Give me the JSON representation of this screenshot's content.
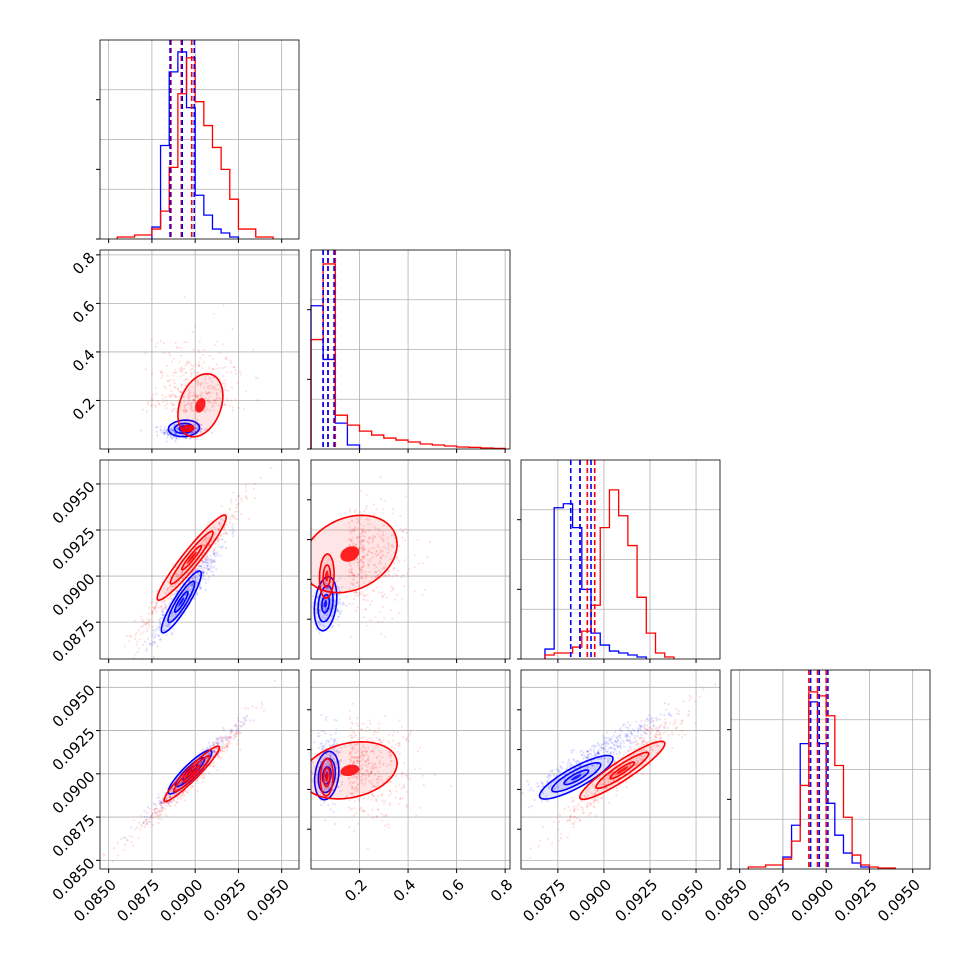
{
  "chart_data": {
    "type": "corner",
    "title": "",
    "parameters": [
      {
        "range": [
          0.0845,
          0.096
        ],
        "ticks": [
          0.085,
          0.0875,
          0.09,
          0.0925,
          0.095
        ],
        "tick_labels": [
          "0.0850",
          "0.0875",
          "0.0900",
          "0.0925",
          "0.0950"
        ]
      },
      {
        "range": [
          0.0,
          0.82
        ],
        "ticks": [
          0.2,
          0.4,
          0.6,
          0.8
        ],
        "tick_labels": [
          "0.2",
          "0.4",
          "0.6",
          "0.8"
        ]
      },
      {
        "range": [
          0.0855,
          0.0963
        ],
        "ticks": [
          0.0875,
          0.09,
          0.0925,
          0.095
        ],
        "tick_labels": [
          "0.0875",
          "0.0900",
          "0.0925",
          "0.0950"
        ]
      },
      {
        "range": [
          0.0845,
          0.096
        ],
        "ticks": [
          0.085,
          0.0875,
          0.09,
          0.0925,
          0.095
        ],
        "tick_labels": [
          "0.0850",
          "0.0875",
          "0.0900",
          "0.0925",
          "0.0950"
        ]
      }
    ],
    "grid": true,
    "legend": "none",
    "series": [
      {
        "color": "#0000ff",
        "quantiles": [
          [
            0.08855,
            0.08925,
            0.08995
          ],
          [
            0.05,
            0.07,
            0.095
          ],
          [
            0.0882,
            0.0887,
            0.0893
          ],
          [
            0.0891,
            0.0896,
            0.0901
          ]
        ],
        "histograms": [
          {
            "edges": [
              0.0875,
              0.088,
              0.0885,
              0.089,
              0.0895,
              0.09,
              0.0905,
              0.091,
              0.0915,
              0.092,
              0.0925
            ],
            "counts": [
              0.06,
              0.47,
              0.84,
              0.94,
              0.66,
              0.22,
              0.12,
              0.05,
              0.03,
              0.01
            ]
          },
          {
            "edges": [
              0.0,
              0.05,
              0.1,
              0.15,
              0.2
            ],
            "counts": [
              0.72,
              0.45,
              0.13,
              0.02
            ]
          },
          {
            "edges": [
              0.0868,
              0.0873,
              0.0878,
              0.0883,
              0.0888,
              0.0893,
              0.0898,
              0.0903,
              0.0908,
              0.0913,
              0.0918,
              0.0923
            ],
            "counts": [
              0.05,
              0.76,
              0.78,
              0.66,
              0.35,
              0.13,
              0.07,
              0.04,
              0.03,
              0.02,
              0.01
            ]
          },
          {
            "edges": [
              0.0875,
              0.088,
              0.0885,
              0.089,
              0.0895,
              0.09,
              0.0905,
              0.091,
              0.0915,
              0.092,
              0.0925
            ],
            "counts": [
              0.06,
              0.22,
              0.63,
              0.84,
              0.63,
              0.33,
              0.17,
              0.08,
              0.03,
              0.01
            ]
          }
        ]
      },
      {
        "color": "#ff0000",
        "quantiles": [
          [
            0.0886,
            0.0892,
            0.0898
          ],
          [
            0.05,
            0.07,
            0.1
          ],
          [
            0.0887,
            0.0891,
            0.0895
          ],
          [
            0.089,
            0.0895,
            0.09
          ]
        ],
        "histograms": [
          {
            "edges": [
              0.0855,
              0.0865,
              0.0875,
              0.088,
              0.0885,
              0.089,
              0.0895,
              0.09,
              0.0905,
              0.091,
              0.0915,
              0.092,
              0.0925,
              0.0935,
              0.0945
            ],
            "counts": [
              0.01,
              0.02,
              0.05,
              0.14,
              0.36,
              0.73,
              0.91,
              0.69,
              0.57,
              0.46,
              0.35,
              0.2,
              0.05,
              0.01
            ]
          },
          {
            "edges": [
              0.0,
              0.05,
              0.1,
              0.15,
              0.2,
              0.25,
              0.3,
              0.35,
              0.4,
              0.45,
              0.5,
              0.55,
              0.6,
              0.65,
              0.7,
              0.75,
              0.8
            ],
            "counts": [
              0.55,
              0.93,
              0.17,
              0.12,
              0.09,
              0.07,
              0.055,
              0.045,
              0.035,
              0.025,
              0.02,
              0.015,
              0.01,
              0.008,
              0.005,
              0.003
            ]
          },
          {
            "edges": [
              0.0868,
              0.0873,
              0.0878,
              0.0883,
              0.0888,
              0.0893,
              0.0898,
              0.0903,
              0.0908,
              0.0913,
              0.0918,
              0.0923,
              0.0928,
              0.0933,
              0.0938
            ],
            "counts": [
              0.02,
              0.03,
              0.03,
              0.06,
              0.14,
              0.27,
              0.66,
              0.85,
              0.72,
              0.57,
              0.31,
              0.13,
              0.03,
              0.01
            ]
          },
          {
            "edges": [
              0.0855,
              0.0865,
              0.0875,
              0.088,
              0.0885,
              0.089,
              0.0895,
              0.09,
              0.0905,
              0.091,
              0.0915,
              0.092,
              0.0925,
              0.093,
              0.094
            ],
            "counts": [
              0.01,
              0.02,
              0.05,
              0.14,
              0.42,
              0.89,
              0.87,
              0.77,
              0.52,
              0.26,
              0.07,
              0.02,
              0.01,
              0.005
            ]
          }
        ]
      }
    ],
    "scatter_2d": [
      {
        "row": 1,
        "col": 0,
        "series": [
          {
            "color": "#0000ff",
            "mean": [
              0.0893,
              0.075
            ],
            "sd": [
              0.0006,
              0.018
            ],
            "rho": 0.1,
            "count": 320,
            "skew": 0.0
          },
          {
            "color": "#ff0000",
            "mean": [
              0.09,
              0.2
            ],
            "sd": [
              0.0012,
              0.16
            ],
            "rho": -0.3,
            "count": 380,
            "skew": 1.4
          }
        ]
      },
      {
        "row": 2,
        "col": 0,
        "series": [
          {
            "color": "#0000ff",
            "mean": [
              0.0895,
              0.089
            ],
            "sd": [
              0.0012,
              0.0016
            ],
            "rho": 0.96,
            "count": 420
          },
          {
            "color": "#ff0000",
            "mean": [
              0.0898,
              0.0906
            ],
            "sd": [
              0.0016,
              0.0019
            ],
            "rho": 0.97,
            "count": 460
          }
        ]
      },
      {
        "row": 2,
        "col": 1,
        "series": [
          {
            "color": "#0000ff",
            "mean": [
              0.07,
              0.0886
            ],
            "sd": [
              0.03,
              0.0006
            ],
            "rho": 0.2,
            "count": 250,
            "skew": 0.0
          },
          {
            "color": "#ff0000",
            "mean": [
              0.2,
              0.091
            ],
            "sd": [
              0.15,
              0.0015
            ],
            "rho": -0.2,
            "count": 420,
            "skew": 1.3
          }
        ]
      },
      {
        "row": 3,
        "col": 0,
        "series": [
          {
            "color": "#0000ff",
            "mean": [
              0.0899,
              0.0902
            ],
            "sd": [
              0.0013,
              0.0013
            ],
            "rho": 0.98,
            "count": 420
          },
          {
            "color": "#ff0000",
            "mean": [
              0.0898,
              0.0898
            ],
            "sd": [
              0.0017,
              0.0017
            ],
            "rho": 0.98,
            "count": 460
          }
        ]
      },
      {
        "row": 3,
        "col": 1,
        "series": [
          {
            "color": "#0000ff",
            "mean": [
              0.07,
              0.0905
            ],
            "sd": [
              0.03,
              0.001
            ],
            "rho": 0.1,
            "count": 250,
            "skew": 0.0
          },
          {
            "color": "#ff0000",
            "mean": [
              0.2,
              0.0903
            ],
            "sd": [
              0.15,
              0.0014
            ],
            "rho": -0.2,
            "count": 420,
            "skew": 1.3
          }
        ]
      },
      {
        "row": 3,
        "col": 2,
        "series": [
          {
            "color": "#0000ff",
            "mean": [
              0.0895,
              0.091
            ],
            "sd": [
              0.002,
              0.0013
            ],
            "rho": 0.95,
            "count": 420
          },
          {
            "color": "#ff0000",
            "mean": [
              0.091,
              0.0903
            ],
            "sd": [
              0.0017,
              0.0017
            ],
            "rho": 0.96,
            "count": 460
          }
        ]
      }
    ],
    "contours_2d": [
      {
        "row": 1,
        "col": 0,
        "series": [
          {
            "color": "#0000ff",
            "center": [
              0.08935,
              0.085
            ],
            "sd": [
              0.00045,
              0.017
            ],
            "rho": 0.1,
            "levels": [
              0.6,
              1.2,
              2.0
            ]
          },
          {
            "color": "#ff0000",
            "center": [
              0.0896,
              0.085
            ],
            "sd": [
              0.00032,
              0.012
            ],
            "rho": 0.1,
            "levels": [
              0.6,
              1.0
            ]
          },
          {
            "color": "#ff0000",
            "center": [
              0.0903,
              0.18
            ],
            "sd": [
              0.001,
              0.1
            ],
            "rho": 0.3,
            "levels": [
              1.3
            ]
          }
        ]
      },
      {
        "row": 2,
        "col": 0,
        "series": [
          {
            "color": "#0000ff",
            "center": [
              0.0892,
              0.0886
            ],
            "sd": [
              0.00055,
              0.0008
            ],
            "rho": 0.9,
            "levels": [
              0.7,
              1.4,
              2.1
            ]
          },
          {
            "color": "#ff0000",
            "center": [
              0.0898,
              0.091
            ],
            "sd": [
              0.00095,
              0.0011
            ],
            "rho": 0.95,
            "levels": [
              0.6,
              1.3,
              2.1
            ]
          }
        ]
      },
      {
        "row": 2,
        "col": 1,
        "series": [
          {
            "color": "#0000ff",
            "center": [
              0.06,
              0.0885
            ],
            "sd": [
              0.022,
              0.0007
            ],
            "rho": 0.25,
            "levels": [
              0.7,
              1.4,
              2.1
            ]
          },
          {
            "color": "#ff0000",
            "center": [
              0.065,
              0.09
            ],
            "sd": [
              0.025,
              0.001
            ],
            "rho": 0.1,
            "levels": [
              0.6,
              1.2
            ]
          },
          {
            "color": "#ff0000",
            "center": [
              0.16,
              0.0912
            ],
            "sd": [
              0.13,
              0.0014
            ],
            "rho": 0.25,
            "levels": [
              1.5
            ]
          }
        ]
      },
      {
        "row": 3,
        "col": 0,
        "series": [
          {
            "color": "#0000ff",
            "center": [
              0.0897,
              0.0901
            ],
            "sd": [
              0.0006,
              0.0006
            ],
            "rho": 0.9,
            "levels": [
              0.7,
              1.4,
              2.1
            ]
          },
          {
            "color": "#ff0000",
            "center": [
              0.0898,
              0.09
            ],
            "sd": [
              0.0008,
              0.0008
            ],
            "rho": 0.95,
            "levels": [
              0.6,
              1.3,
              2.0
            ]
          }
        ]
      },
      {
        "row": 3,
        "col": 1,
        "series": [
          {
            "color": "#0000ff",
            "center": [
              0.065,
              0.0899
            ],
            "sd": [
              0.025,
              0.0007
            ],
            "rho": 0.2,
            "levels": [
              0.7,
              1.4,
              2.0
            ]
          },
          {
            "color": "#ff0000",
            "center": [
              0.065,
              0.0898
            ],
            "sd": [
              0.022,
              0.0009
            ],
            "rho": 0.1,
            "levels": [
              0.6,
              1.2
            ]
          },
          {
            "color": "#ff0000",
            "center": [
              0.16,
              0.0902
            ],
            "sd": [
              0.13,
              0.0011
            ],
            "rho": 0.25,
            "levels": [
              1.5
            ]
          }
        ]
      },
      {
        "row": 3,
        "col": 2,
        "series": [
          {
            "color": "#0000ff",
            "center": [
              0.0885,
              0.0898
            ],
            "sd": [
              0.00095,
              0.0006
            ],
            "rho": 0.85,
            "levels": [
              0.7,
              1.4,
              2.1
            ]
          },
          {
            "color": "#ff0000",
            "center": [
              0.091,
              0.0902
            ],
            "sd": [
              0.0011,
              0.0008
            ],
            "rho": 0.92,
            "levels": [
              0.6,
              1.3,
              2.1
            ]
          }
        ]
      }
    ]
  }
}
